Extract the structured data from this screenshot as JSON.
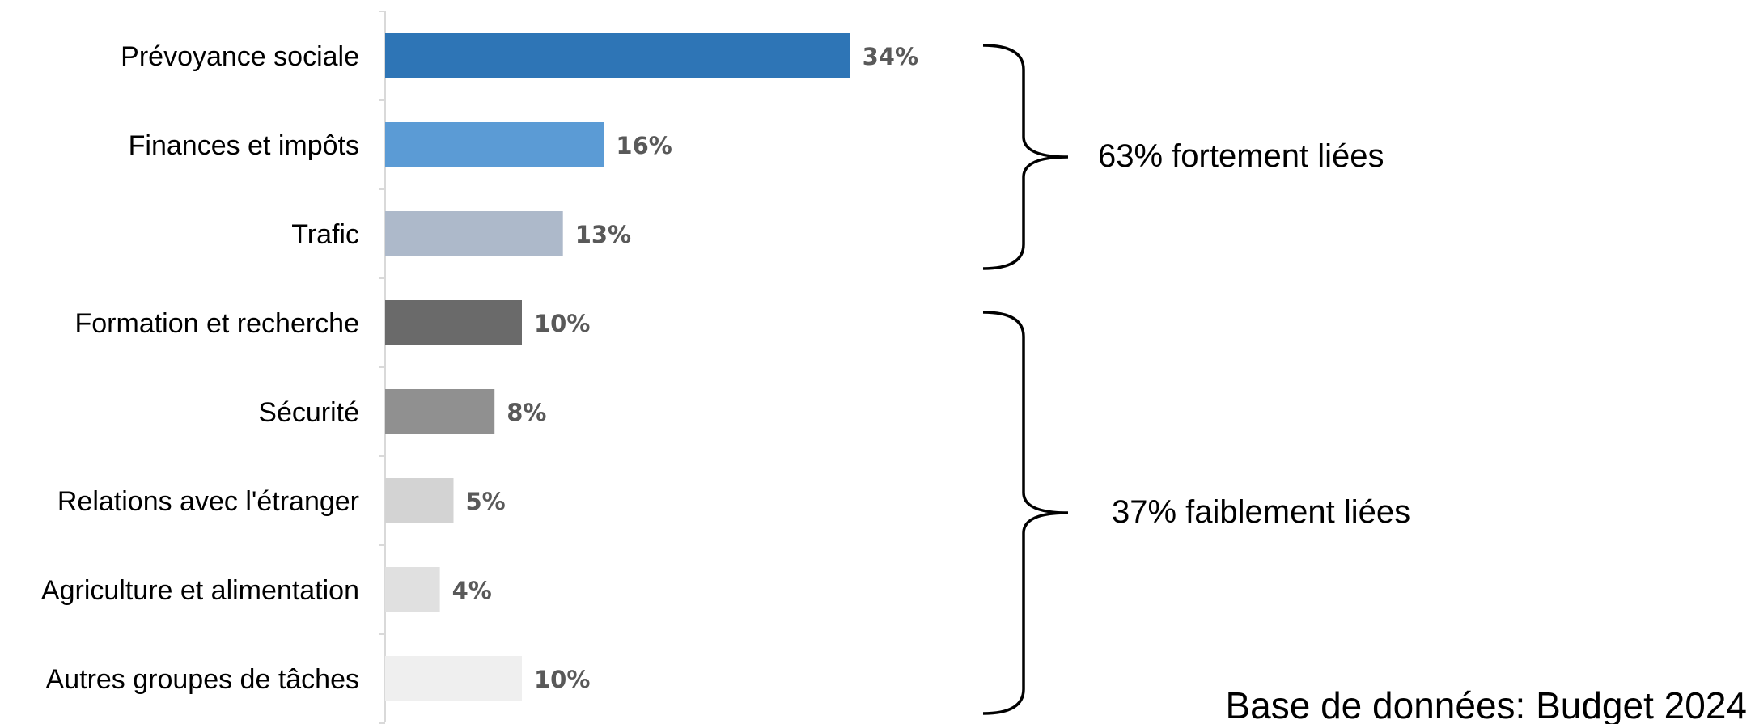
{
  "chart_data": {
    "type": "bar",
    "orientation": "horizontal",
    "categories": [
      "Prévoyance sociale",
      "Finances et impôts",
      "Trafic",
      "Formation et recherche",
      "Sécurité",
      "Relations avec l'étranger",
      "Agriculture et alimentation",
      "Autres groupes de tâches"
    ],
    "values": [
      34,
      16,
      13,
      10,
      8,
      5,
      4,
      10
    ],
    "value_labels": [
      "34%",
      "16%",
      "13%",
      "10%",
      "8%",
      "5%",
      "4%",
      "10%"
    ],
    "colors": [
      "#2E75B6",
      "#5B9BD5",
      "#ADB9CA",
      "#6A6A6A",
      "#909090",
      "#D3D3D3",
      "#E0E0E0",
      "#EFEFEF"
    ],
    "xlim": [
      0,
      34
    ],
    "grid": false,
    "groups": [
      {
        "label": "63% fortement liées",
        "from": 0,
        "to": 2
      },
      {
        "label": "37% faiblement liées",
        "from": 3,
        "to": 7
      }
    ],
    "source": "Base de données: Budget 2024"
  }
}
